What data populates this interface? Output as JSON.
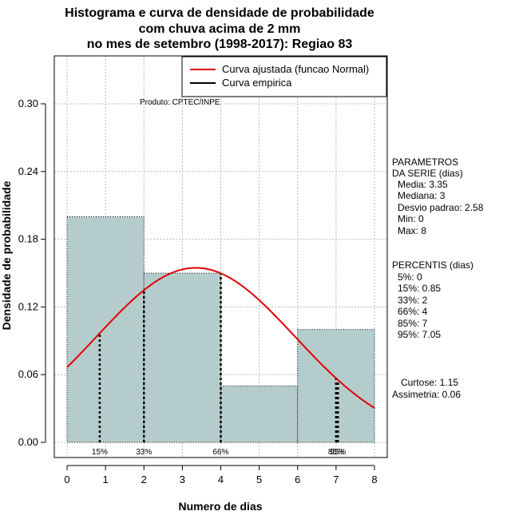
{
  "chart_data": {
    "type": "bar",
    "title_lines": [
      "Histograma e curva de densidade de probabilidade",
      "com chuva acima de 2 mm",
      "no mes de setembro (1998-2017): Regiao 83"
    ],
    "xlabel": "Numero de dias",
    "ylabel": "Densidade de probabilidade",
    "xlim": [
      0,
      8
    ],
    "ylim": [
      0,
      0.3
    ],
    "x_ticks": [
      "0",
      "1",
      "2",
      "3",
      "4",
      "5",
      "6",
      "7",
      "8"
    ],
    "y_ticks": [
      "0.00",
      "0.06",
      "0.12",
      "0.18",
      "0.24",
      "0.30"
    ],
    "bins": [
      {
        "from": 0,
        "to": 2,
        "density": 0.2
      },
      {
        "from": 2,
        "to": 4,
        "density": 0.15
      },
      {
        "from": 4,
        "to": 6,
        "density": 0.05
      },
      {
        "from": 6,
        "to": 8,
        "density": 0.1
      }
    ],
    "normal_fit": {
      "mean": 3.35,
      "sd": 2.58,
      "color": "#e00000"
    },
    "percentile_lines": [
      {
        "label": "15%",
        "x": 0.85
      },
      {
        "label": "33%",
        "x": 2
      },
      {
        "label": "66%",
        "x": 4
      },
      {
        "label": "85%",
        "x": 7
      },
      {
        "label": "95%",
        "x": 7.05
      }
    ],
    "legend": {
      "position": "top-right",
      "items": [
        {
          "label": "Curva ajustada (funcao Normal)",
          "color": "#e00000"
        },
        {
          "label": "Curva empirica",
          "color": "#000000"
        }
      ]
    },
    "product_note": "Produto: CPTEC/INPE",
    "bar_color": "#b5cccc"
  },
  "side_panel": {
    "params_header": [
      "PARAMETROS",
      "DA SERIE (dias)"
    ],
    "params": [
      "Media: 3.35",
      "Mediana: 3",
      "Desvio padrao: 2.58",
      "Min: 0",
      "Max: 8"
    ],
    "percentis_header": "PERCENTIS (dias)",
    "percentis": [
      "5%: 0",
      "15%: 0.85",
      "33%: 2",
      "66%: 4",
      "85%: 7",
      "95%: 7.05"
    ],
    "stats": [
      "Curtose: 1.15",
      "Assimetria: 0.06"
    ]
  }
}
